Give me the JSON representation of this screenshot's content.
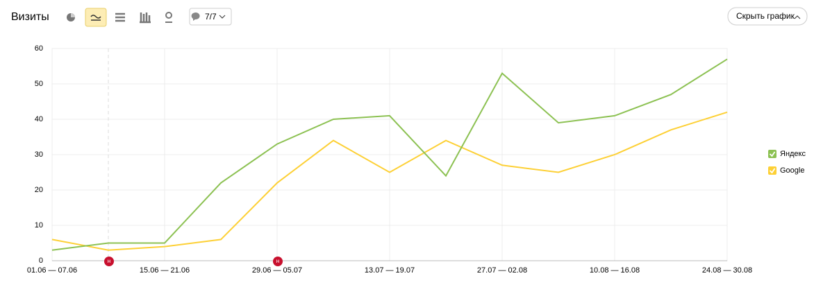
{
  "toolbar": {
    "title": "Визиты",
    "comments_button": "7/7",
    "hide_button": "Скрыть график"
  },
  "chart_data": {
    "type": "line",
    "categories": [
      "01.06 — 07.06",
      null,
      "15.06 — 21.06",
      null,
      "29.06 — 05.07",
      null,
      "13.07 — 19.07",
      null,
      "27.07 — 02.08",
      null,
      "10.08 — 16.08",
      null,
      "24.08 — 30.08"
    ],
    "series": [
      {
        "name": "Яндекс",
        "color": "#8cc152",
        "values": [
          3,
          5,
          5,
          22,
          33,
          40,
          41,
          24,
          53,
          39,
          41,
          47,
          57
        ]
      },
      {
        "name": "Google",
        "color": "#fdd035",
        "values": [
          6,
          3,
          4,
          6,
          22,
          34,
          25,
          34,
          27,
          25,
          30,
          37,
          42
        ]
      }
    ],
    "ylim": [
      0,
      60
    ],
    "yticks": [
      0,
      10,
      20,
      30,
      40,
      50,
      60
    ],
    "grid": true,
    "legend": "right",
    "annotations": [
      "н",
      "н"
    ]
  }
}
